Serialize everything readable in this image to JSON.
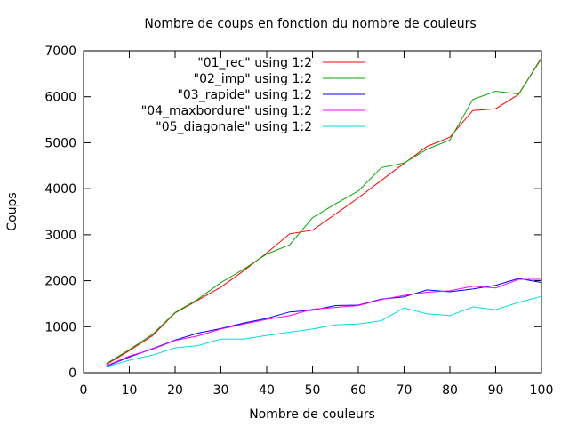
{
  "chart_data": {
    "type": "line",
    "title": "Nombre de coups en fonction du nombre de couleurs",
    "xlabel": "Nombre de couleurs",
    "ylabel": "Coups",
    "xlim": [
      0,
      100
    ],
    "ylim": [
      0,
      7000
    ],
    "xticks": [
      0,
      10,
      20,
      30,
      40,
      50,
      60,
      70,
      80,
      90,
      100
    ],
    "yticks": [
      0,
      1000,
      2000,
      3000,
      4000,
      5000,
      6000,
      7000
    ],
    "grid": false,
    "legend_position": "top-left",
    "x": [
      5,
      10,
      15,
      20,
      25,
      30,
      35,
      40,
      45,
      50,
      55,
      60,
      65,
      70,
      75,
      80,
      85,
      90,
      95,
      100
    ],
    "series": [
      {
        "name": "\"01_rec\" using 1:2",
        "color": "#ff0000",
        "values": [
          180,
          480,
          800,
          1300,
          1580,
          1860,
          2220,
          2600,
          3020,
          3100,
          3450,
          3800,
          4180,
          4550,
          4920,
          5120,
          5700,
          5740,
          6050,
          6850
        ]
      },
      {
        "name": "\"02_imp\" using 1:2",
        "color": "#00aa00",
        "values": [
          200,
          500,
          830,
          1310,
          1600,
          1960,
          2250,
          2580,
          2780,
          3370,
          3670,
          3950,
          4460,
          4560,
          4860,
          5060,
          5940,
          6120,
          6060,
          6830
        ]
      },
      {
        "name": "\"03_rapide\" using 1:2",
        "color": "#0000ff",
        "values": [
          140,
          340,
          520,
          710,
          860,
          960,
          1080,
          1180,
          1320,
          1360,
          1460,
          1470,
          1600,
          1650,
          1800,
          1760,
          1820,
          1900,
          2050,
          1960
        ]
      },
      {
        "name": "\"04_maxbordure\" using 1:2",
        "color": "#ff00ff",
        "values": [
          150,
          360,
          510,
          700,
          800,
          950,
          1060,
          1160,
          1240,
          1380,
          1420,
          1460,
          1590,
          1680,
          1750,
          1780,
          1880,
          1840,
          2030,
          2030
        ]
      },
      {
        "name": "\"05_diagonale\" using 1:2",
        "color": "#00dddd",
        "values": [
          130,
          270,
          380,
          540,
          590,
          730,
          730,
          810,
          880,
          950,
          1040,
          1060,
          1130,
          1410,
          1280,
          1240,
          1430,
          1370,
          1530,
          1660
        ]
      }
    ]
  }
}
